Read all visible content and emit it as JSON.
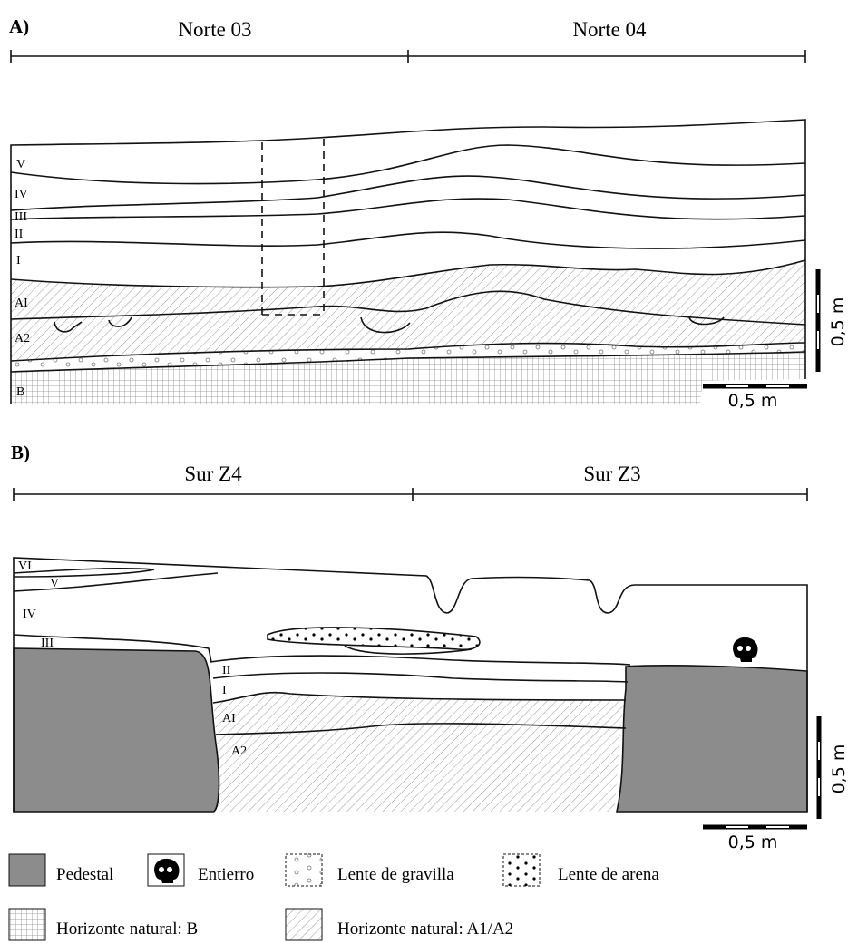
{
  "panel_a": {
    "label": "A)",
    "sections": [
      "Norte 03",
      "Norte 04"
    ],
    "layers": [
      "V",
      "IV",
      "III",
      "II",
      "I",
      "AI",
      "A2",
      "B"
    ],
    "scale": {
      "vertical": "0,5 m",
      "horizontal": "0,5 m"
    }
  },
  "panel_b": {
    "label": "B)",
    "sections": [
      "Sur Z4",
      "Sur Z3"
    ],
    "layers": [
      "VI",
      "V",
      "IV",
      "III",
      "II",
      "I",
      "AI",
      "A2"
    ],
    "scale": {
      "vertical": "0,5 m",
      "horizontal": "0,5 m"
    }
  },
  "legend": [
    "Pedestal",
    "Entierro",
    "Lente de gravilla",
    "Lente de arena",
    "Horizonte natural: B",
    "Horizonte natural: A1/A2"
  ]
}
